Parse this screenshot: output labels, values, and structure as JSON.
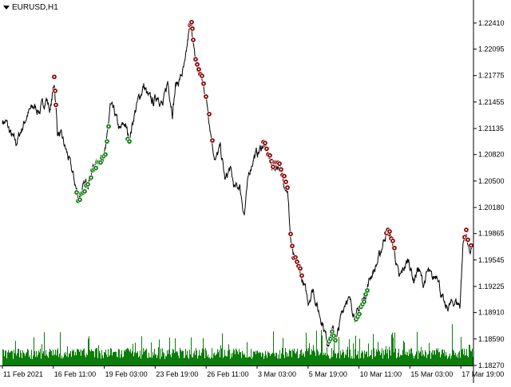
{
  "header": {
    "symbol_label": "EURUSD,H1"
  },
  "colors": {
    "price": "#000000",
    "volume": "#0a7d0a",
    "sell_marker": "#8b0000",
    "buy_marker": "#0a7d0a",
    "axis": "#000000"
  },
  "chart_data": {
    "type": "line",
    "title": "",
    "ylim": [
      1.1827,
      1.2265
    ],
    "y_ticks": [
      "1.22410",
      "1.22095",
      "1.21775",
      "1.21455",
      "1.21135",
      "1.20820",
      "1.20500",
      "1.20180",
      "1.19865",
      "1.19545",
      "1.19225",
      "1.18910",
      "1.18590",
      "1.18270"
    ],
    "x_ticks": [
      "11 Feb 2021",
      "16 Feb 11:00",
      "19 Feb 03:00",
      "23 Feb 19:00",
      "26 Feb 11:00",
      "3 Mar 03:00",
      "5 Mar 19:00",
      "10 Mar 11:00",
      "15 Mar 03:00",
      "17 Mar 19:00"
    ],
    "price_keypoints": [
      [
        0,
        1.2125
      ],
      [
        8,
        1.212
      ],
      [
        14,
        1.2105
      ],
      [
        20,
        1.2095
      ],
      [
        26,
        1.211
      ],
      [
        34,
        1.213
      ],
      [
        42,
        1.214
      ],
      [
        50,
        1.2135
      ],
      [
        58,
        1.215
      ],
      [
        63,
        1.2135
      ],
      [
        68,
        1.217
      ],
      [
        72,
        1.211
      ],
      [
        78,
        1.21
      ],
      [
        85,
        1.208
      ],
      [
        92,
        1.2055
      ],
      [
        98,
        1.203
      ],
      [
        104,
        1.204
      ],
      [
        110,
        1.205
      ],
      [
        116,
        1.2065
      ],
      [
        122,
        1.2075
      ],
      [
        128,
        1.208
      ],
      [
        133,
        1.209
      ],
      [
        138,
        1.214
      ],
      [
        144,
        1.213
      ],
      [
        150,
        1.211
      ],
      [
        156,
        1.212
      ],
      [
        162,
        1.21
      ],
      [
        168,
        1.213
      ],
      [
        174,
        1.215
      ],
      [
        180,
        1.2165
      ],
      [
        186,
        1.215
      ],
      [
        192,
        1.2145
      ],
      [
        198,
        1.2155
      ],
      [
        204,
        1.214
      ],
      [
        210,
        1.217
      ],
      [
        216,
        1.2135
      ],
      [
        220,
        1.2165
      ],
      [
        226,
        1.2175
      ],
      [
        232,
        1.219
      ],
      [
        236,
        1.2225
      ],
      [
        240,
        1.224
      ],
      [
        243,
        1.2205
      ],
      [
        247,
        1.2185
      ],
      [
        252,
        1.2175
      ],
      [
        256,
        1.216
      ],
      [
        260,
        1.214
      ],
      [
        266,
        1.2095
      ],
      [
        270,
        1.2075
      ],
      [
        276,
        1.209
      ],
      [
        282,
        1.205
      ],
      [
        288,
        1.2065
      ],
      [
        294,
        1.204
      ],
      [
        300,
        1.2045
      ],
      [
        306,
        1.201
      ],
      [
        312,
        1.206
      ],
      [
        318,
        1.208
      ],
      [
        324,
        1.2085
      ],
      [
        330,
        1.2095
      ],
      [
        336,
        1.208
      ],
      [
        342,
        1.2065
      ],
      [
        348,
        1.207
      ],
      [
        354,
        1.2055
      ],
      [
        360,
        1.204
      ],
      [
        364,
        1.198
      ],
      [
        368,
        1.1955
      ],
      [
        374,
        1.1945
      ],
      [
        380,
        1.1925
      ],
      [
        386,
        1.1905
      ],
      [
        392,
        1.192
      ],
      [
        398,
        1.1895
      ],
      [
        404,
        1.188
      ],
      [
        410,
        1.1855
      ],
      [
        416,
        1.187
      ],
      [
        422,
        1.186
      ],
      [
        428,
        1.189
      ],
      [
        434,
        1.191
      ],
      [
        440,
        1.19
      ],
      [
        446,
        1.1885
      ],
      [
        452,
        1.19
      ],
      [
        458,
        1.1915
      ],
      [
        464,
        1.1935
      ],
      [
        470,
        1.1945
      ],
      [
        476,
        1.196
      ],
      [
        482,
        1.1985
      ],
      [
        488,
        1.1985
      ],
      [
        494,
        1.1965
      ],
      [
        500,
        1.193
      ],
      [
        506,
        1.1945
      ],
      [
        512,
        1.1955
      ],
      [
        518,
        1.193
      ],
      [
        524,
        1.1945
      ],
      [
        530,
        1.1925
      ],
      [
        536,
        1.194
      ],
      [
        542,
        1.193
      ],
      [
        548,
        1.194
      ],
      [
        553,
        1.191
      ],
      [
        558,
        1.1895
      ],
      [
        564,
        1.19
      ],
      [
        570,
        1.1905
      ],
      [
        576,
        1.19
      ],
      [
        580,
        1.1975
      ],
      [
        584,
        1.1985
      ],
      [
        588,
        1.1965
      ],
      [
        592,
        1.1975
      ]
    ],
    "sell_marker_x": [
      68,
      69,
      70,
      238,
      239,
      240,
      241,
      242,
      245,
      247,
      249,
      251,
      253,
      255,
      258,
      262,
      266,
      330,
      332,
      334,
      336,
      338,
      340,
      342,
      344,
      346,
      348,
      350,
      352,
      354,
      356,
      358,
      360,
      364,
      366,
      368,
      370,
      372,
      374,
      376,
      378,
      484,
      486,
      488,
      490,
      492,
      494,
      582,
      584,
      586,
      590
    ],
    "buy_marker_x": [
      96,
      98,
      100,
      102,
      104,
      106,
      108,
      110,
      114,
      116,
      118,
      120,
      122,
      124,
      126,
      128,
      130,
      132,
      134,
      136,
      160,
      162,
      412,
      414,
      416,
      418,
      420,
      446,
      448,
      450,
      452,
      454,
      456,
      458,
      460
    ],
    "volume_seed": 7
  }
}
